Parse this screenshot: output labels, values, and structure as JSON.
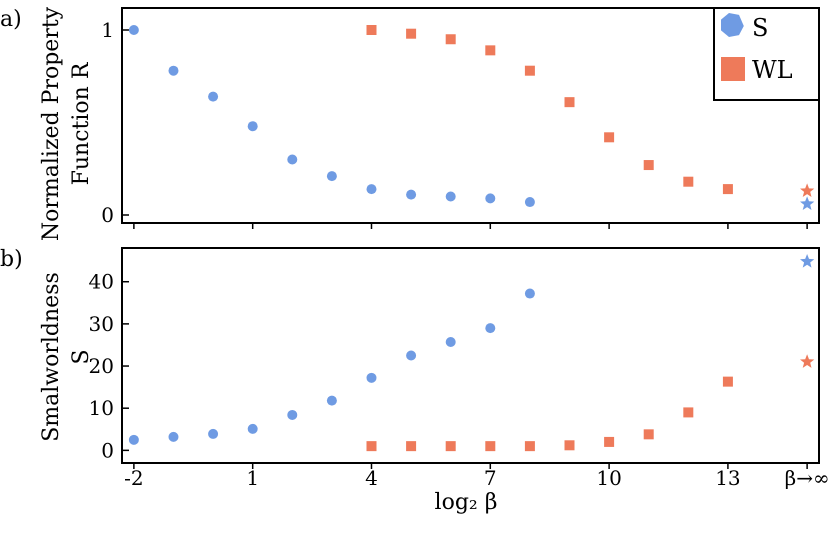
{
  "colors": {
    "S": "#6f9be3",
    "WL": "#ee7a5a",
    "axis": "#000000"
  },
  "chart_data": [
    {
      "type": "scatter",
      "panel_label": "a)",
      "ylabel_lines": [
        "Normalized Property",
        "Function R"
      ],
      "ylim": [
        0,
        1
      ],
      "yticks": [
        0,
        1
      ],
      "x_ticks": [
        -2,
        1,
        4,
        7,
        10,
        13
      ],
      "x_inf_position": 15,
      "xlim": [
        -2.3,
        15.3
      ],
      "legend": {
        "position": "top-right",
        "entries": [
          "S",
          "WL"
        ]
      },
      "series": [
        {
          "name": "S",
          "marker": "circle",
          "x": [
            -2,
            -1,
            0,
            1,
            2,
            3,
            4,
            5,
            6,
            7,
            8
          ],
          "y": [
            1.0,
            0.78,
            0.64,
            0.48,
            0.3,
            0.21,
            0.14,
            0.11,
            0.1,
            0.09,
            0.07
          ]
        },
        {
          "name": "WL",
          "marker": "square",
          "x": [
            4,
            5,
            6,
            7,
            8,
            9,
            10,
            11,
            12,
            13
          ],
          "y": [
            1.0,
            0.98,
            0.95,
            0.89,
            0.78,
            0.61,
            0.42,
            0.27,
            0.18,
            0.14
          ]
        }
      ],
      "inf_points": [
        {
          "series": "S",
          "y": 0.06
        },
        {
          "series": "WL",
          "y": 0.13
        }
      ]
    },
    {
      "type": "scatter",
      "panel_label": "b)",
      "ylabel_lines": [
        "Smalworldness",
        "S"
      ],
      "ylim": [
        -3,
        48
      ],
      "yticks": [
        0,
        10,
        20,
        30,
        40
      ],
      "x_ticks": [
        -2,
        1,
        4,
        7,
        10,
        13
      ],
      "x_inf_position": 15,
      "xlim": [
        -2.3,
        15.3
      ],
      "series": [
        {
          "name": "S",
          "marker": "circle",
          "x": [
            -2,
            -1,
            0,
            1,
            2,
            3,
            4,
            5,
            6,
            7,
            8
          ],
          "y": [
            2.5,
            3.2,
            3.9,
            5.1,
            8.4,
            11.8,
            17.2,
            22.5,
            25.7,
            29.0,
            37.2
          ]
        },
        {
          "name": "WL",
          "marker": "square",
          "x": [
            4,
            5,
            6,
            7,
            8,
            9,
            10,
            11,
            12,
            13
          ],
          "y": [
            1.0,
            1.0,
            1.0,
            1.0,
            1.0,
            1.2,
            2.0,
            3.8,
            9.0,
            16.3
          ]
        }
      ],
      "inf_points": [
        {
          "series": "S",
          "y": 44.8
        },
        {
          "series": "WL",
          "y": 21.0
        }
      ],
      "x_tick_labels": [
        "-2",
        "1",
        "4",
        "7",
        "10",
        "13"
      ],
      "x_inf_label": "β→∞",
      "xlabel": "log₂ β"
    }
  ]
}
